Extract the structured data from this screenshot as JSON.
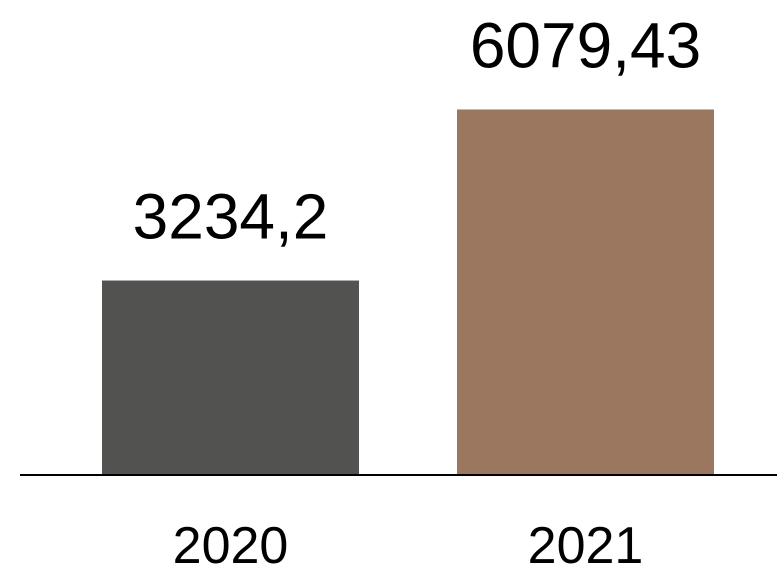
{
  "chart_data": {
    "type": "bar",
    "categories": [
      "2020",
      "2021"
    ],
    "values": [
      3234.2,
      6079.43
    ],
    "data_labels": [
      "3234,2",
      "6079,43"
    ],
    "colors": [
      "#525250",
      "#9b7760"
    ],
    "axis_color": "#000000",
    "title": "",
    "xlabel": "",
    "ylabel": "",
    "ylim": [
      0,
      7900
    ],
    "grid": false,
    "legend": "none"
  }
}
